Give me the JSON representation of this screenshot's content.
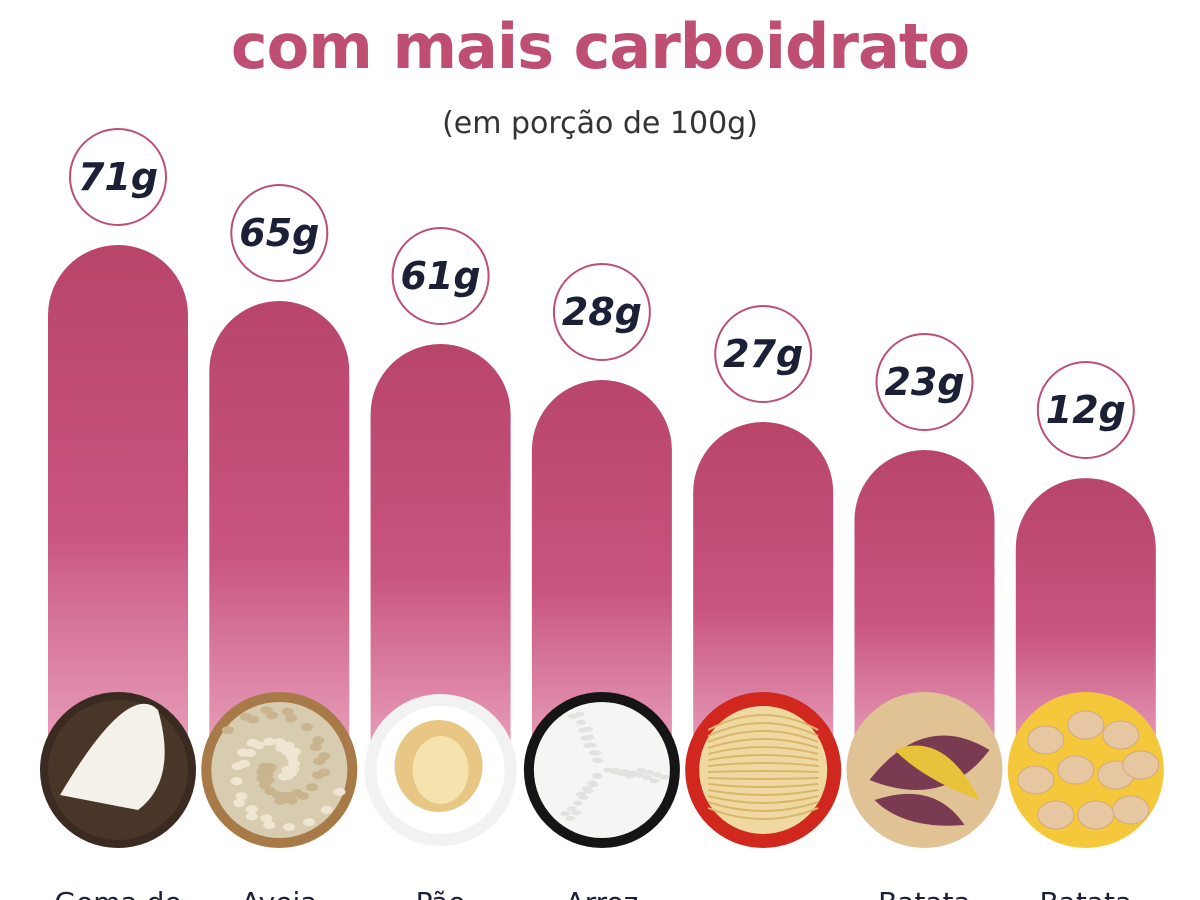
{
  "header": {
    "title_top": "",
    "title": "com mais carboidrato",
    "subtitle": "(em porção de 100g)"
  },
  "colors": {
    "accent": "#be4f72",
    "bar_top": "#b8456a",
    "bar_bottom": "#e9a1bc",
    "label_text": "#1b2036"
  },
  "chart_data": {
    "type": "bar",
    "unit": "g",
    "categories": [
      "Goma de",
      "Aveia",
      "Pão",
      "Arroz",
      "",
      "Batata",
      "Batata"
    ],
    "values": [
      71,
      65,
      61,
      28,
      27,
      23,
      12
    ],
    "value_labels": [
      "71g",
      "65g",
      "61g",
      "28g",
      "27g",
      "23g",
      "12g"
    ],
    "food_icons": [
      "tapioca-icon",
      "oats-icon",
      "bread-icon",
      "rice-icon",
      "noodles-icon",
      "sweet-potato-icon",
      "potato-icon"
    ],
    "legend": "none",
    "grid": false
  }
}
